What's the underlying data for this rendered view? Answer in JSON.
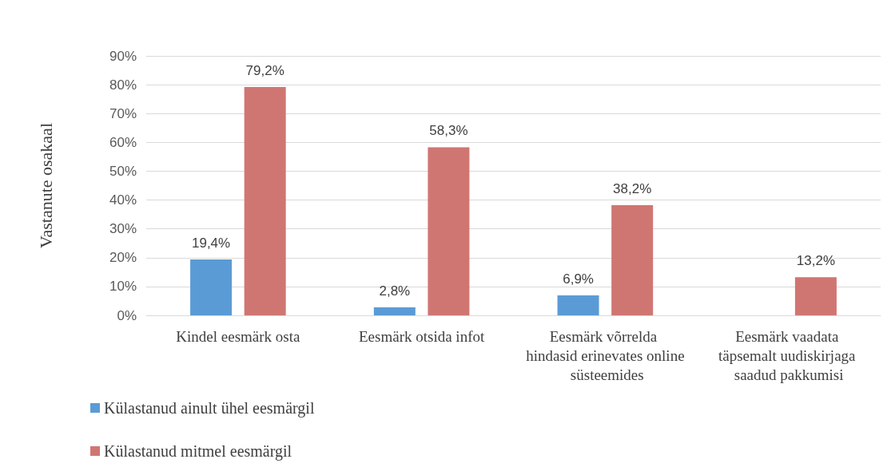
{
  "chart_data": {
    "type": "bar",
    "ylabel": "Vastanute osakaal",
    "categories": [
      "Kindel eesmärk osta",
      "Eesmärk otsida infot",
      "Eesmärk võrrelda hindasid erinevates online süsteemides",
      "Eesmärk vaadata täpsemalt uudiskirjaga saadud pakkumisi"
    ],
    "series": [
      {
        "name": "Külastanud ainult ühel eesmärgil",
        "color": "#5b9bd5",
        "values": [
          19.4,
          2.8,
          6.9,
          null
        ],
        "value_labels": [
          "19,4%",
          "2,8%",
          "6,9%",
          null
        ]
      },
      {
        "name": "Külastanud mitmel eesmärgil",
        "color": "#d07672",
        "values": [
          79.2,
          58.3,
          38.2,
          13.2
        ],
        "value_labels": [
          "79,2%",
          "58,3%",
          "38,2%",
          "13,2%"
        ]
      }
    ],
    "ylim": [
      0,
      90
    ],
    "yticks": [
      {
        "value": 0,
        "label": "0%"
      },
      {
        "value": 10,
        "label": "10%"
      },
      {
        "value": 20,
        "label": "20%"
      },
      {
        "value": 30,
        "label": "30%"
      },
      {
        "value": 40,
        "label": "40%"
      },
      {
        "value": 50,
        "label": "50%"
      },
      {
        "value": 60,
        "label": "60%"
      },
      {
        "value": 70,
        "label": "70%"
      },
      {
        "value": 80,
        "label": "80%"
      },
      {
        "value": 90,
        "label": "90%"
      }
    ],
    "grid": "y",
    "legend": "bottom left"
  }
}
